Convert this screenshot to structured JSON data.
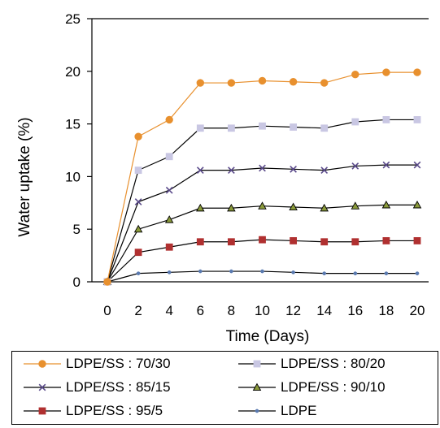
{
  "chart_data": {
    "type": "line",
    "title": "",
    "xlabel": "Time (Days)",
    "ylabel": "Water uptake (%)",
    "x": [
      0,
      2,
      4,
      6,
      8,
      10,
      12,
      14,
      16,
      18,
      20
    ],
    "xticks": [
      "0",
      "2",
      "4",
      "6",
      "8",
      "10",
      "12",
      "14",
      "16",
      "18",
      "20"
    ],
    "yticks": [
      "0",
      "5",
      "10",
      "15",
      "20",
      "25"
    ],
    "ylim": [
      0,
      25
    ],
    "grid": false,
    "legend_position": "bottom",
    "series": [
      {
        "name": "LDPE/SS : 70/30",
        "marker": "circle",
        "color": "#E8902E",
        "line_color": "#E8902E",
        "values": [
          0,
          13.8,
          15.4,
          18.9,
          18.9,
          19.1,
          19.0,
          18.9,
          19.7,
          19.9,
          19.9
        ]
      },
      {
        "name": "LDPE/SS : 80/20",
        "marker": "square",
        "color": "#C9C7E3",
        "line_color": "#000000",
        "values": [
          0,
          10.6,
          11.9,
          14.6,
          14.6,
          14.8,
          14.7,
          14.6,
          15.2,
          15.4,
          15.4
        ]
      },
      {
        "name": "LDPE/SS : 85/15",
        "marker": "x",
        "color": "#5A4A8A",
        "line_color": "#000000",
        "values": [
          0,
          7.6,
          8.7,
          10.6,
          10.6,
          10.8,
          10.7,
          10.6,
          11.0,
          11.1,
          11.1
        ]
      },
      {
        "name": "LDPE/SS : 90/10",
        "marker": "triangle",
        "color": "#8A9A3A",
        "line_color": "#000000",
        "values": [
          0,
          5.0,
          5.9,
          7.0,
          7.0,
          7.2,
          7.1,
          7.0,
          7.2,
          7.3,
          7.3
        ]
      },
      {
        "name": "LDPE/SS : 95/5",
        "marker": "square",
        "color": "#B03030",
        "line_color": "#000000",
        "values": [
          0,
          2.8,
          3.3,
          3.8,
          3.8,
          4.0,
          3.9,
          3.8,
          3.8,
          3.9,
          3.9
        ]
      },
      {
        "name": "LDPE",
        "marker": "dot",
        "color": "#5A7AB0",
        "line_color": "#000000",
        "values": [
          0,
          0.8,
          0.9,
          1.0,
          1.0,
          1.0,
          0.9,
          0.8,
          0.8,
          0.8,
          0.8
        ]
      }
    ]
  }
}
